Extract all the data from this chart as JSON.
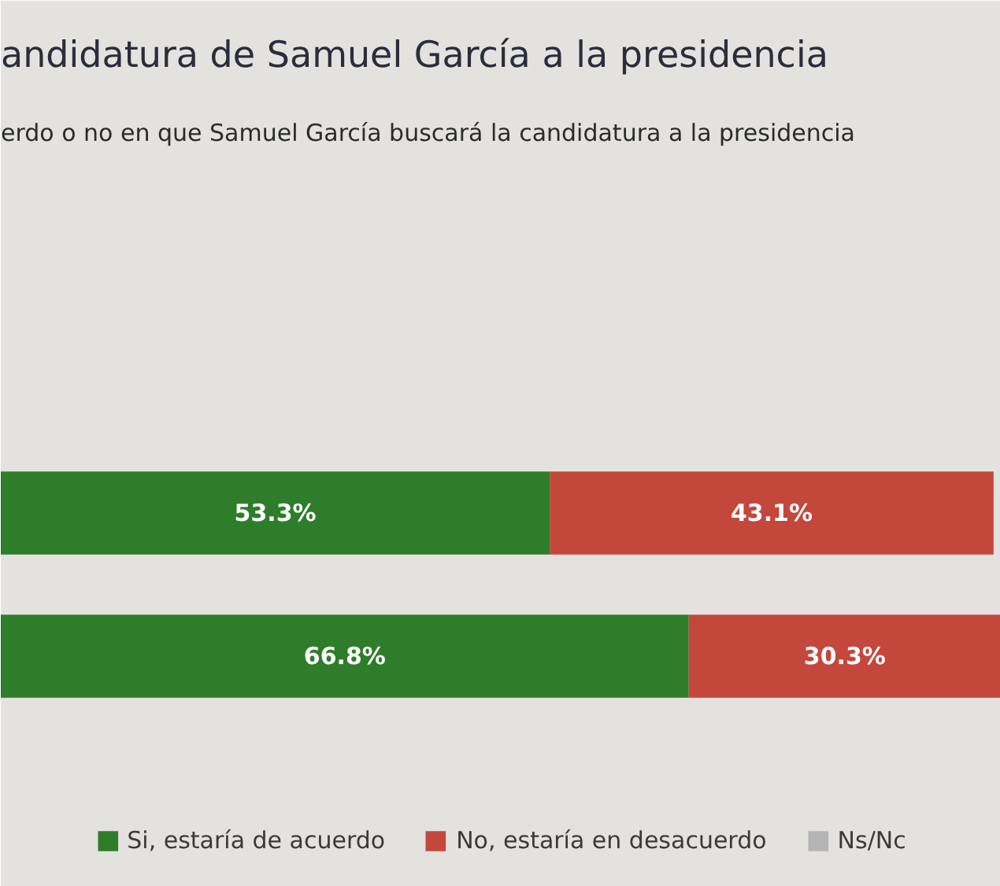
{
  "chart_data": {
    "type": "bar",
    "orientation": "horizontal",
    "stacked": true,
    "title": "andidatura de Samuel García a la presidencia",
    "subtitle": "erdo o no en que Samuel García buscará la candidatura a la presidencia",
    "categories": [
      null,
      null
    ],
    "series": [
      {
        "name": "Si, estaría de acuerdo",
        "color": "#2e7d2a",
        "values": [
          53.3,
          66.8
        ],
        "value_labels": [
          "53.3%",
          "66.8%"
        ]
      },
      {
        "name": "No, estaría en desacuerdo",
        "color": "#c4473c",
        "values": [
          43.1,
          30.3
        ],
        "value_labels": [
          "43.1%",
          "30.3%"
        ]
      },
      {
        "name": "Ns/Nc",
        "color": "#b4b4b4",
        "values": [
          null,
          null
        ]
      }
    ],
    "legend": "bottom",
    "grid": false,
    "tick_labels": false
  }
}
